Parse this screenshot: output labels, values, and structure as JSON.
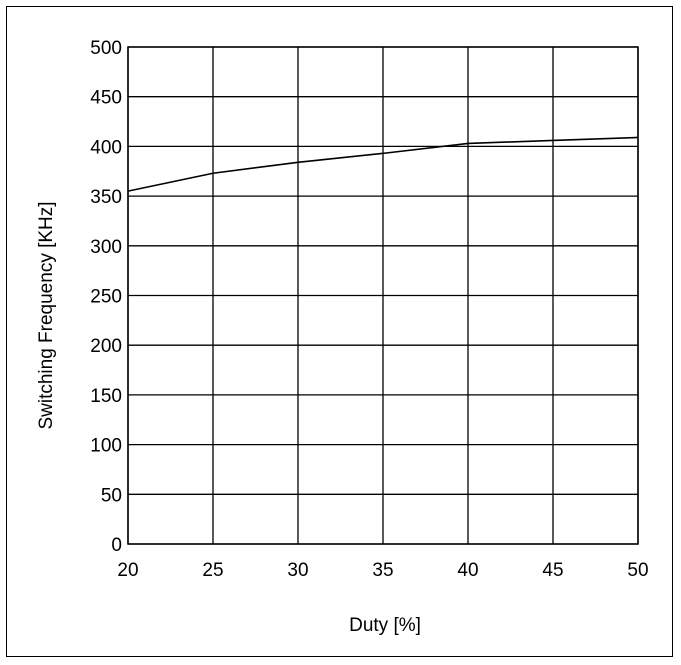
{
  "chart_data": {
    "type": "line",
    "title": "",
    "xlabel": "Duty [%]",
    "ylabel": "Switching Frequency [KHz]",
    "xlim": [
      20,
      50
    ],
    "ylim": [
      0,
      500
    ],
    "x_ticks": [
      "20",
      "25",
      "30",
      "35",
      "40",
      "45",
      "50"
    ],
    "y_ticks": [
      "0",
      "50",
      "100",
      "150",
      "200",
      "250",
      "300",
      "350",
      "400",
      "450",
      "500"
    ],
    "grid": true,
    "legend": "none",
    "series": [
      {
        "x": [
          20,
          25,
          30,
          35,
          40,
          45,
          50
        ],
        "y": [
          355,
          373,
          384,
          393,
          403,
          406,
          409
        ]
      }
    ],
    "colors": {
      "line": "#000000",
      "grid": "#000000",
      "background": "#ffffff"
    }
  }
}
